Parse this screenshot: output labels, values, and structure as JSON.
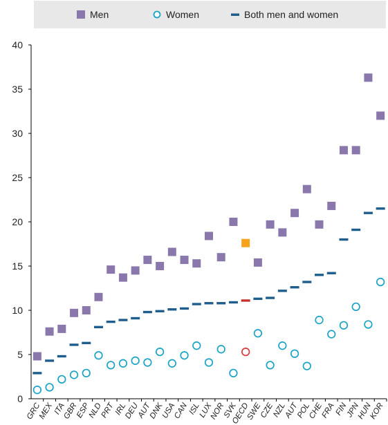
{
  "legend": {
    "men": "Men",
    "women": "Women",
    "both": "Both men and women"
  },
  "colors": {
    "men": "#8a78ad",
    "women": "#1aa3c6",
    "both": "#1f5d8c",
    "oecd_men": "#f7a21b",
    "oecd_women": "#e0373b",
    "oecd_both": "#c8312f",
    "grid": "#d9d9d9"
  },
  "chart_data": {
    "type": "scatter",
    "categories": [
      "GRC",
      "MEX",
      "ITA",
      "GBR",
      "ESP",
      "NLD",
      "PRT",
      "IRL",
      "DEU",
      "AUT",
      "DNK",
      "USA",
      "CAN",
      "ISL",
      "LUX",
      "NOR",
      "SVK",
      "OECD",
      "SWE",
      "CZE",
      "NZL",
      "AUT",
      "POL",
      "CHE",
      "FRA",
      "FIN",
      "JPN",
      "HUN",
      "KOR"
    ],
    "highlight_category": "OECD",
    "series": [
      {
        "name": "Men",
        "marker": "square",
        "values": [
          4.8,
          7.6,
          7.9,
          9.7,
          10.0,
          11.5,
          14.6,
          13.7,
          14.5,
          15.7,
          15.0,
          16.6,
          15.7,
          15.3,
          18.4,
          16.0,
          20.0,
          17.6,
          15.4,
          19.7,
          18.8,
          21.0,
          23.7,
          19.7,
          21.8,
          28.1,
          28.1,
          36.3,
          32.0
        ]
      },
      {
        "name": "Women",
        "marker": "circle",
        "values": [
          1.0,
          1.3,
          2.2,
          2.7,
          2.9,
          4.9,
          3.8,
          4.0,
          4.3,
          4.1,
          5.3,
          4.0,
          4.9,
          6.0,
          4.1,
          5.6,
          2.9,
          5.3,
          7.4,
          3.8,
          6.0,
          5.1,
          3.7,
          8.9,
          7.3,
          8.3,
          10.4,
          8.4,
          13.2
        ]
      },
      {
        "name": "Both men and women",
        "marker": "dash",
        "values": [
          2.9,
          4.3,
          4.8,
          6.1,
          6.3,
          8.1,
          8.7,
          8.9,
          9.1,
          9.8,
          9.9,
          10.1,
          10.2,
          10.7,
          10.8,
          10.8,
          10.9,
          11.1,
          11.3,
          11.4,
          12.2,
          12.6,
          13.2,
          14.0,
          14.2,
          18.0,
          19.1,
          21.0,
          21.5
        ]
      }
    ],
    "ylim": [
      0,
      40
    ],
    "yticks": [
      0,
      5,
      10,
      15,
      20,
      25,
      30,
      35,
      40
    ],
    "grid": false,
    "legend_position": "top"
  }
}
